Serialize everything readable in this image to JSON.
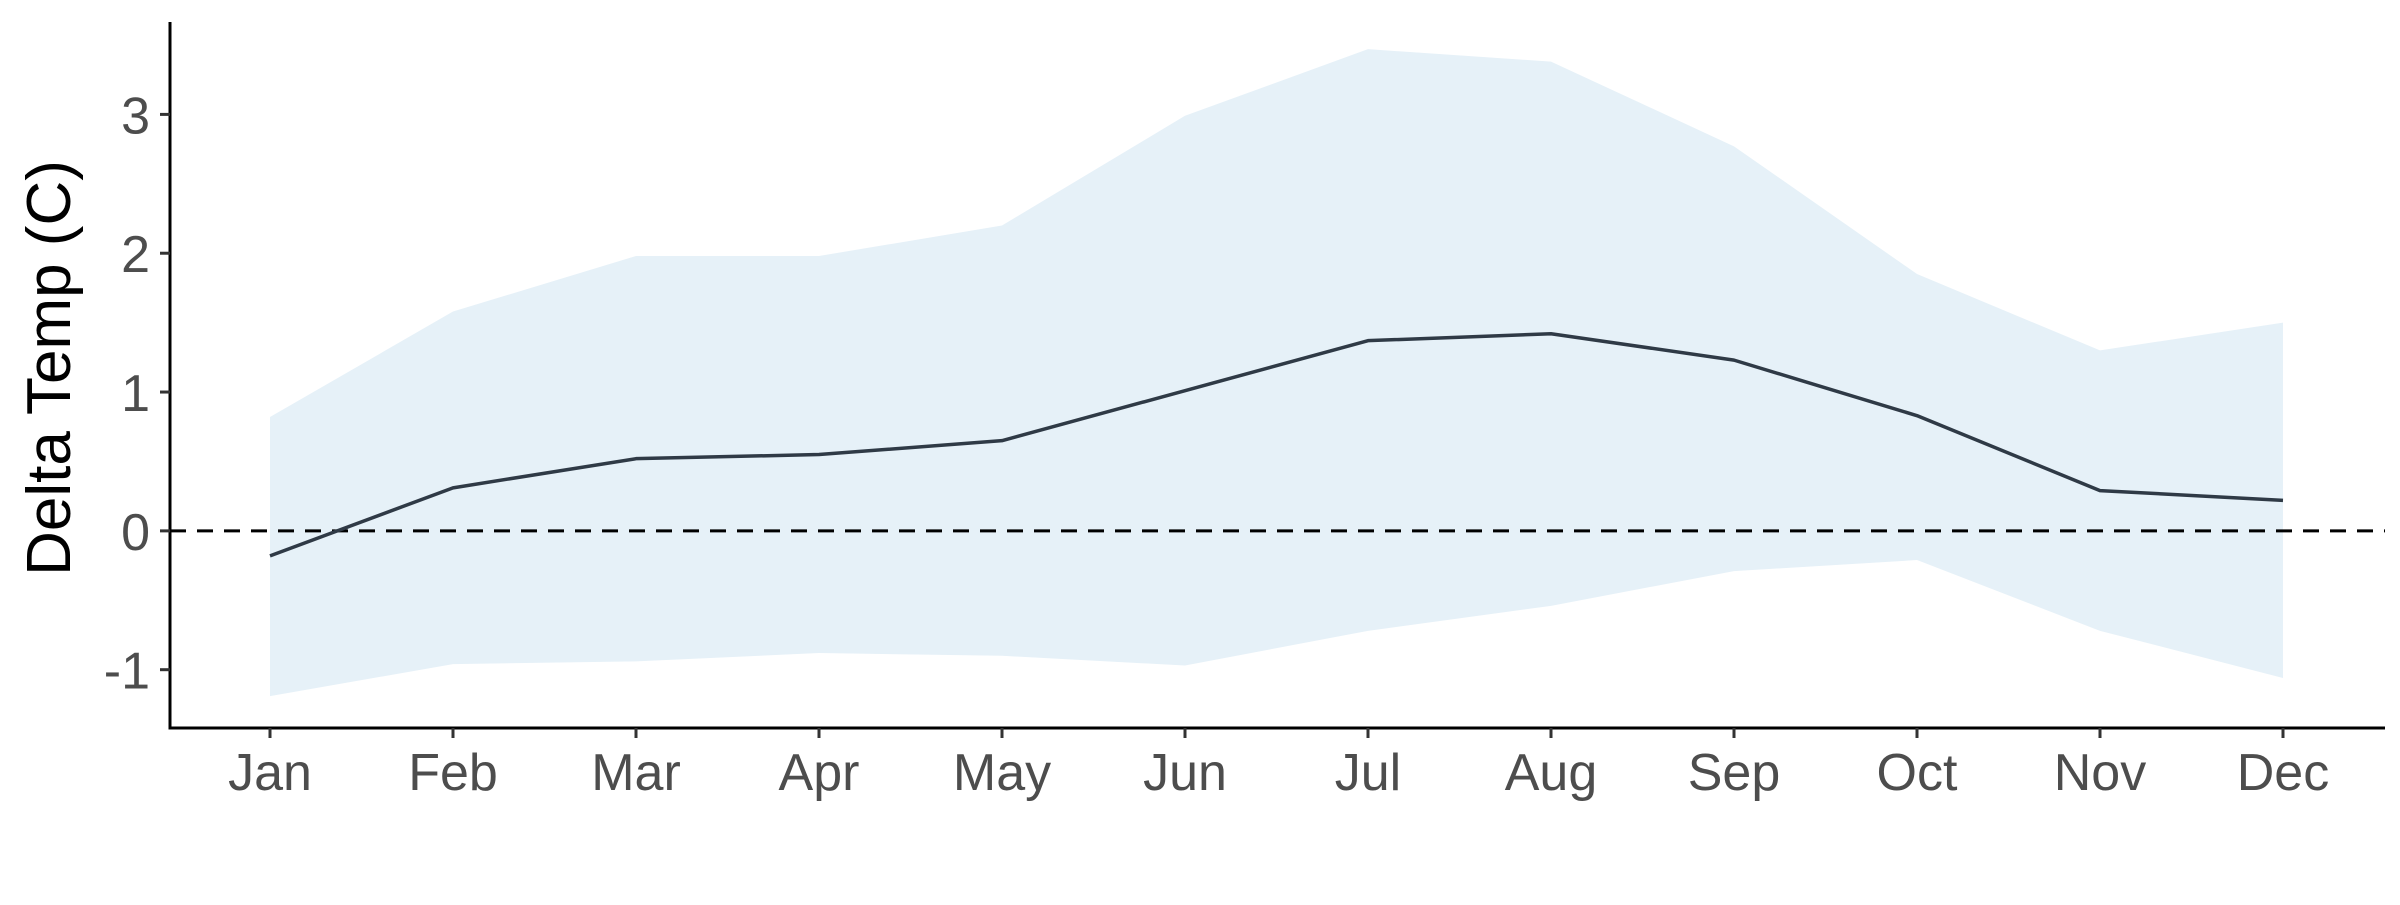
{
  "chart_data": {
    "type": "line",
    "title": "",
    "xlabel": "",
    "ylabel": "Delta Temp (C)",
    "categories": [
      "Jan",
      "Feb",
      "Mar",
      "Apr",
      "May",
      "Jun",
      "Jul",
      "Aug",
      "Sep",
      "Oct",
      "Nov",
      "Dec"
    ],
    "series": [
      {
        "values": [
          -0.18,
          0.31,
          0.52,
          0.55,
          0.65,
          1.01,
          1.37,
          1.42,
          1.23,
          0.83,
          0.29,
          0.22
        ]
      }
    ],
    "ribbon": {
      "upper": [
        0.82,
        1.58,
        1.98,
        1.98,
        2.2,
        2.99,
        3.47,
        3.38,
        2.77,
        1.85,
        1.3,
        1.5
      ],
      "lower": [
        -1.19,
        -0.96,
        -0.94,
        -0.88,
        -0.9,
        -0.97,
        -0.72,
        -0.54,
        -0.29,
        -0.21,
        -0.72,
        -1.06
      ]
    },
    "reference_line": {
      "y": 0,
      "style": "dashed"
    },
    "yticks": [
      -1,
      0,
      1,
      2,
      3
    ],
    "ylim": [
      -1.42,
      3.68
    ],
    "grid": false,
    "legend": "none",
    "colors": {
      "line": "#2f3a46",
      "ribbon": "#e6f1f8",
      "axis": "#000000",
      "tick_text": "#4d4d4d",
      "axis_title": "#000000"
    }
  }
}
